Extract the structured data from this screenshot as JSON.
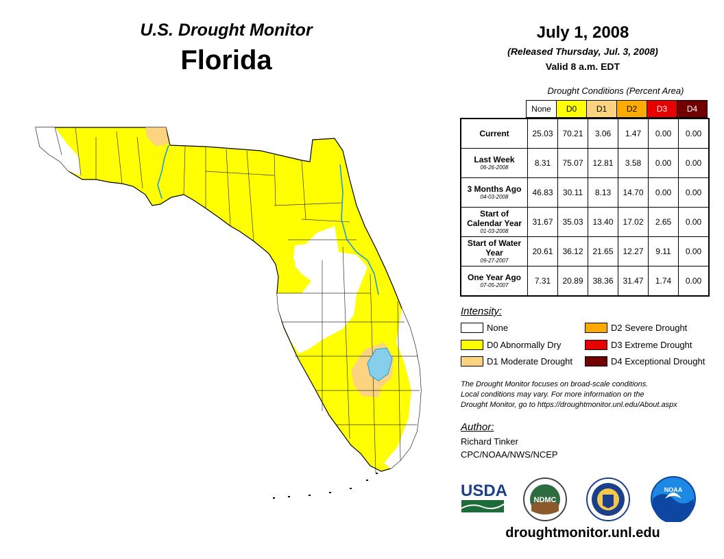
{
  "header": {
    "monitor_title": "U.S. Drought Monitor",
    "state": "Florida",
    "date": "July 1, 2008",
    "released": "(Released Thursday, Jul. 3, 2008)",
    "valid": "Valid 8 a.m. EDT"
  },
  "table": {
    "caption": "Drought Conditions (Percent Area)",
    "columns": [
      "None",
      "D0",
      "D1",
      "D2",
      "D3",
      "D4"
    ],
    "rows": [
      {
        "label": "Current",
        "date": "",
        "values": [
          "25.03",
          "70.21",
          "3.06",
          "1.47",
          "0.00",
          "0.00"
        ]
      },
      {
        "label": "Last Week",
        "date": "06-26-2008",
        "values": [
          "8.31",
          "75.07",
          "12.81",
          "3.58",
          "0.00",
          "0.00"
        ]
      },
      {
        "label": "3 Months Ago",
        "date": "04-03-2008",
        "values": [
          "46.83",
          "30.11",
          "8.13",
          "14.70",
          "0.00",
          "0.00"
        ]
      },
      {
        "label": "Start of Calendar Year",
        "date": "01-03-2008",
        "values": [
          "31.67",
          "35.03",
          "13.40",
          "17.02",
          "2.65",
          "0.00"
        ]
      },
      {
        "label": "Start of Water Year",
        "date": "09-27-2007",
        "values": [
          "20.61",
          "36.12",
          "21.65",
          "12.27",
          "9.11",
          "0.00"
        ]
      },
      {
        "label": "One Year Ago",
        "date": "07-05-2007",
        "values": [
          "7.31",
          "20.89",
          "38.36",
          "31.47",
          "1.74",
          "0.00"
        ]
      }
    ]
  },
  "legend": {
    "title": "Intensity:",
    "items": [
      {
        "label": "None",
        "color": "#ffffff"
      },
      {
        "label": "D0 Abnormally Dry",
        "color": "#ffff00"
      },
      {
        "label": "D1 Moderate Drought",
        "color": "#fcd37f"
      },
      {
        "label": "D2 Severe Drought",
        "color": "#ffaa00"
      },
      {
        "label": "D3 Extreme Drought",
        "color": "#e60000"
      },
      {
        "label": "D4 Exceptional Drought",
        "color": "#730000"
      }
    ]
  },
  "note": {
    "line1": "The Drought Monitor focuses on broad-scale conditions.",
    "line2": "Local conditions may vary. For more information on the",
    "line3": "Drought Monitor, go to https://droughtmonitor.unl.edu/About.aspx"
  },
  "author": {
    "title": "Author:",
    "name": "Richard Tinker",
    "org": "CPC/NOAA/NWS/NCEP"
  },
  "logos": {
    "usda": "USDA",
    "ndmc": "NDMC",
    "noaa": "NOAA"
  },
  "footer": {
    "url": "droughtmonitor.unl.edu"
  },
  "colors": {
    "d0": "#ffff00",
    "d1": "#fcd37f",
    "d2": "#ffaa00",
    "d3": "#e60000",
    "d4": "#730000",
    "water": "#87ceeb",
    "river": "#1e9bd7"
  }
}
